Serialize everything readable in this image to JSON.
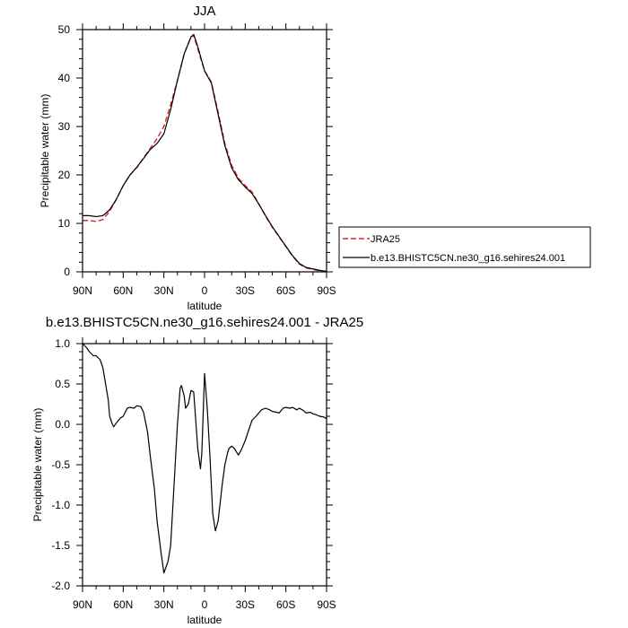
{
  "chart_data": [
    {
      "type": "line",
      "title": "JJA",
      "xlabel": "latitude",
      "ylabel": "Precipitable water (mm)",
      "xlim": [
        90,
        -90
      ],
      "ylim": [
        0,
        50
      ],
      "x_ticks": [
        "90N",
        "60N",
        "30N",
        "0",
        "30S",
        "60S",
        "90S"
      ],
      "y_ticks": [
        "0",
        "10",
        "20",
        "30",
        "40",
        "50"
      ],
      "grid": false,
      "legend": {
        "placement": "right"
      },
      "series": [
        {
          "name": "JRA25",
          "color": "#e8202a",
          "dash": "dashed",
          "x": [
            90,
            85,
            80,
            75,
            70,
            65,
            60,
            55,
            50,
            45,
            40,
            35,
            30,
            25,
            20,
            15,
            10,
            8,
            5,
            0,
            -5,
            -10,
            -15,
            -20,
            -25,
            -30,
            -35,
            -40,
            -45,
            -50,
            -55,
            -60,
            -65,
            -70,
            -75,
            -80,
            -85,
            -90
          ],
          "y": [
            10.6,
            10.6,
            10.4,
            10.8,
            12.5,
            15.0,
            17.8,
            20.0,
            21.5,
            23.5,
            25.5,
            27.5,
            30.0,
            34.5,
            39.5,
            45.0,
            48.5,
            48.8,
            46.0,
            41.5,
            39.2,
            33.0,
            26.5,
            22.0,
            19.3,
            17.8,
            16.5,
            14.0,
            11.5,
            9.2,
            7.2,
            5.2,
            3.2,
            1.6,
            0.8,
            0.5,
            0.2,
            0.1
          ]
        },
        {
          "name": "b.e13.BHISTC5CN.ne30_g16.sehires24.001",
          "color": "#000000",
          "dash": "solid",
          "x": [
            90,
            85,
            80,
            75,
            70,
            65,
            60,
            55,
            50,
            45,
            40,
            35,
            30,
            25,
            20,
            15,
            10,
            8,
            5,
            0,
            -5,
            -10,
            -15,
            -20,
            -25,
            -30,
            -35,
            -40,
            -45,
            -50,
            -55,
            -60,
            -65,
            -70,
            -75,
            -80,
            -85,
            -90
          ],
          "y": [
            11.6,
            11.6,
            11.4,
            11.6,
            12.8,
            15.0,
            17.8,
            20.0,
            21.6,
            23.4,
            25.3,
            26.5,
            28.5,
            33.5,
            39.5,
            45.0,
            48.5,
            49.0,
            46.5,
            41.5,
            39.0,
            32.5,
            26.0,
            21.5,
            19.0,
            17.5,
            16.2,
            14.0,
            11.6,
            9.3,
            7.3,
            5.3,
            3.3,
            1.7,
            0.9,
            0.6,
            0.3,
            0.1
          ]
        }
      ]
    },
    {
      "type": "line",
      "title": "b.e13.BHISTC5CN.ne30_g16.sehires24.001 - JRA25",
      "xlabel": "latitude",
      "ylabel": "Precipitable water (mm)",
      "xlim": [
        90,
        -90
      ],
      "ylim": [
        -2.0,
        1.0
      ],
      "x_ticks": [
        "90N",
        "60N",
        "30N",
        "0",
        "30S",
        "60S",
        "90S"
      ],
      "y_ticks": [
        "1.0",
        "0.5",
        "0.0",
        "-0.5",
        "-1.0",
        "-1.5",
        "-2.0"
      ],
      "grid": false,
      "series": [
        {
          "color": "#000000",
          "dash": "solid",
          "x": [
            90,
            87,
            85,
            82,
            80,
            77,
            75,
            73,
            71,
            70,
            68,
            67,
            65,
            62,
            60,
            57,
            55,
            52,
            50,
            47,
            45,
            42,
            40,
            37,
            35,
            32,
            30,
            27,
            25,
            22,
            20,
            18,
            17,
            15,
            14,
            12,
            10,
            8,
            5,
            3,
            2,
            0,
            -2,
            -4,
            -6,
            -8,
            -10,
            -12,
            -13,
            -15,
            -17,
            -18,
            -20,
            -22,
            -25,
            -27,
            -30,
            -32,
            -35,
            -38,
            -40,
            -42,
            -45,
            -48,
            -50,
            -53,
            -55,
            -58,
            -60,
            -63,
            -65,
            -68,
            -70,
            -73,
            -75,
            -78,
            -80,
            -82,
            -85,
            -88,
            -90
          ],
          "y": [
            1.0,
            0.95,
            0.9,
            0.85,
            0.85,
            0.8,
            0.7,
            0.5,
            0.3,
            0.1,
            0.0,
            -0.03,
            0.02,
            0.08,
            0.1,
            0.2,
            0.21,
            0.2,
            0.23,
            0.22,
            0.15,
            -0.1,
            -0.4,
            -0.8,
            -1.2,
            -1.6,
            -1.84,
            -1.7,
            -1.5,
            -0.6,
            0.0,
            0.45,
            0.48,
            0.35,
            0.2,
            0.25,
            0.42,
            0.4,
            -0.3,
            -0.55,
            -0.35,
            0.63,
            0.2,
            -0.4,
            -1.1,
            -1.32,
            -1.2,
            -0.9,
            -0.75,
            -0.5,
            -0.35,
            -0.3,
            -0.27,
            -0.3,
            -0.38,
            -0.32,
            -0.2,
            -0.1,
            0.05,
            0.1,
            0.14,
            0.18,
            0.2,
            0.18,
            0.16,
            0.15,
            0.14,
            0.2,
            0.21,
            0.2,
            0.21,
            0.18,
            0.2,
            0.17,
            0.14,
            0.15,
            0.13,
            0.12,
            0.1,
            0.09,
            0.07
          ]
        }
      ]
    }
  ]
}
